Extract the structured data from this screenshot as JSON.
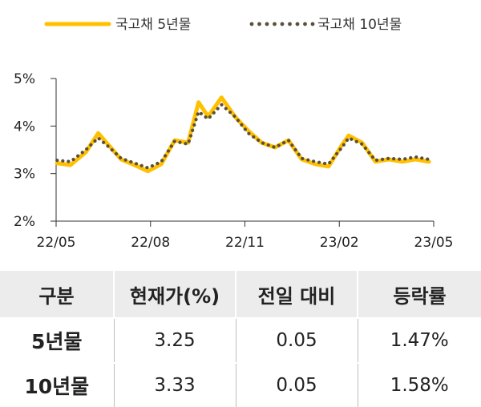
{
  "chart_data": {
    "type": "line",
    "legend": [
      {
        "name": "국고채 5년물",
        "color": "#FFC000",
        "style": "solid"
      },
      {
        "name": "국고채 10년물",
        "color": "#5A4E3C",
        "style": "dotted"
      }
    ],
    "x_ticks": [
      "22/05",
      "22/08",
      "22/11",
      "23/02",
      "23/05"
    ],
    "y_ticks": [
      "5%",
      "4%",
      "3%",
      "2%"
    ],
    "ylim": [
      2,
      5
    ],
    "ylabel": "",
    "xlabel": "",
    "legend_position": "top",
    "series": [
      {
        "name": "국고채 5년물",
        "color": "#FFC000",
        "x": [
          "2022-05-02",
          "2022-05-16",
          "2022-06-01",
          "2022-06-14",
          "2022-06-24",
          "2022-07-08",
          "2022-07-22",
          "2022-08-05",
          "2022-08-19",
          "2022-09-02",
          "2022-09-16",
          "2022-09-27",
          "2022-10-07",
          "2022-10-21",
          "2022-11-04",
          "2022-11-18",
          "2022-12-02",
          "2022-12-16",
          "2022-12-30",
          "2023-01-13",
          "2023-01-27",
          "2023-02-10",
          "2023-02-24",
          "2023-03-03",
          "2023-03-17",
          "2023-03-31",
          "2023-04-14",
          "2023-04-28",
          "2023-05-12",
          "2023-05-26"
        ],
        "values": [
          3.22,
          3.18,
          3.45,
          3.85,
          3.62,
          3.3,
          3.18,
          3.05,
          3.2,
          3.7,
          3.65,
          4.5,
          4.2,
          4.6,
          4.2,
          3.9,
          3.65,
          3.55,
          3.7,
          3.3,
          3.2,
          3.15,
          3.6,
          3.8,
          3.65,
          3.25,
          3.3,
          3.25,
          3.3,
          3.25
        ]
      },
      {
        "name": "국고채 10년물",
        "color": "#5A4E3C",
        "x": [
          "2022-05-02",
          "2022-05-16",
          "2022-06-01",
          "2022-06-14",
          "2022-06-24",
          "2022-07-08",
          "2022-07-22",
          "2022-08-05",
          "2022-08-19",
          "2022-09-02",
          "2022-09-16",
          "2022-09-27",
          "2022-10-07",
          "2022-10-21",
          "2022-11-04",
          "2022-11-18",
          "2022-12-02",
          "2022-12-16",
          "2022-12-30",
          "2023-01-13",
          "2023-01-27",
          "2023-02-10",
          "2023-02-24",
          "2023-03-03",
          "2023-03-17",
          "2023-03-31",
          "2023-04-14",
          "2023-04-28",
          "2023-05-12",
          "2023-05-26"
        ],
        "values": [
          3.28,
          3.25,
          3.5,
          3.75,
          3.58,
          3.32,
          3.22,
          3.12,
          3.25,
          3.68,
          3.62,
          4.3,
          4.15,
          4.45,
          4.2,
          3.85,
          3.65,
          3.55,
          3.7,
          3.32,
          3.25,
          3.2,
          3.55,
          3.75,
          3.62,
          3.28,
          3.32,
          3.3,
          3.35,
          3.3
        ]
      }
    ]
  },
  "table": {
    "headers": [
      "구분",
      "현재가(%)",
      "전일 대비",
      "등락률"
    ],
    "rows": [
      [
        "5년물",
        "3.25",
        "0.05",
        "1.47%"
      ],
      [
        "10년물",
        "3.33",
        "0.05",
        "1.58%"
      ]
    ]
  }
}
